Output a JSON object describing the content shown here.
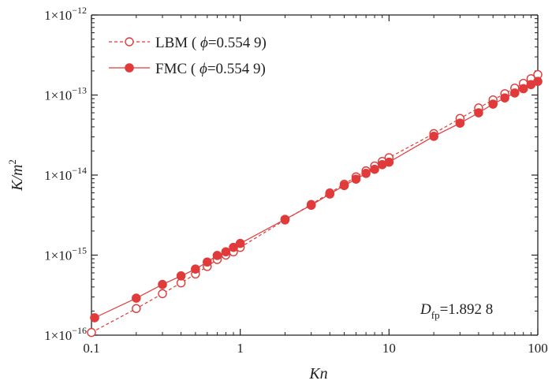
{
  "colors": {
    "accent": "#e03a3a",
    "axis": "#222222"
  },
  "chart_data": {
    "type": "line",
    "xscale": "log",
    "yscale": "log",
    "xlim": [
      0.1,
      100
    ],
    "ylim": [
      1e-16,
      1e-12
    ],
    "x_ticks": [
      0.1,
      1,
      10,
      100
    ],
    "x_tick_labels": [
      "0.1",
      "1",
      "10",
      "100"
    ],
    "y_ticks": [
      1e-16,
      1e-15,
      1e-14,
      1e-13,
      1e-12
    ],
    "y_tick_labels": [
      {
        "base": "1×10",
        "exp": "−16"
      },
      {
        "base": "1×10",
        "exp": "−15"
      },
      {
        "base": "1×10",
        "exp": "−14"
      },
      {
        "base": "1×10",
        "exp": "−13"
      },
      {
        "base": "1×10",
        "exp": "−12"
      }
    ],
    "xlabel": "Kn",
    "ylabel": {
      "main": "K/m",
      "sup": "2"
    },
    "legend_position": "top-left",
    "grid": false,
    "annotation": {
      "main": "D",
      "sub": "fp",
      "value": "=1.892 8"
    },
    "series": [
      {
        "name": "LBM ( ϕ=0.554 9)",
        "legend": {
          "prefix": "LBM ( ",
          "symbol": "ϕ",
          "suffix": "=0.554 9)"
        },
        "style": "dashed",
        "marker": "open-circle",
        "x": [
          0.1,
          0.2,
          0.3,
          0.4,
          0.5,
          0.6,
          0.7,
          0.8,
          0.9,
          1,
          2,
          3,
          4,
          5,
          6,
          7,
          8,
          9,
          10,
          20,
          30,
          40,
          50,
          60,
          70,
          80,
          90,
          100
        ],
        "y": [
          1.08e-16,
          2.15e-16,
          3.3e-16,
          4.5e-16,
          5.8e-16,
          7.2e-16,
          8.8e-16,
          1e-15,
          1.1e-15,
          1.25e-15,
          2.75e-15,
          4.3e-15,
          6e-15,
          7.7e-15,
          9.5e-15,
          1.13e-14,
          1.3e-14,
          1.48e-14,
          1.65e-14,
          3.3e-14,
          5.1e-14,
          6.9e-14,
          8.7e-14,
          1.04e-13,
          1.22e-13,
          1.4e-13,
          1.6e-13,
          1.8e-13
        ]
      },
      {
        "name": "FMC ( ϕ=0.554 9)",
        "legend": {
          "prefix": "FMC ( ",
          "symbol": "ϕ",
          "suffix": "=0.554 9)"
        },
        "style": "solid",
        "marker": "filled-circle",
        "x": [
          0.105,
          0.2,
          0.3,
          0.4,
          0.5,
          0.6,
          0.7,
          0.8,
          0.9,
          1,
          2,
          3,
          4,
          5,
          6,
          7,
          8,
          9,
          10,
          20,
          30,
          40,
          50,
          60,
          70,
          80,
          90,
          100
        ],
        "y": [
          1.65e-16,
          2.9e-16,
          4.3e-16,
          5.5e-16,
          6.7e-16,
          8.2e-16,
          9.9e-16,
          1.1e-15,
          1.25e-15,
          1.4e-15,
          2.8e-15,
          4.2e-15,
          5.8e-15,
          7.4e-15,
          8.9e-15,
          1.05e-14,
          1.18e-14,
          1.35e-14,
          1.45e-14,
          3.05e-14,
          4.45e-14,
          6e-14,
          7.7e-14,
          9.2e-14,
          1.06e-13,
          1.2e-13,
          1.35e-13,
          1.48e-13
        ]
      }
    ]
  }
}
